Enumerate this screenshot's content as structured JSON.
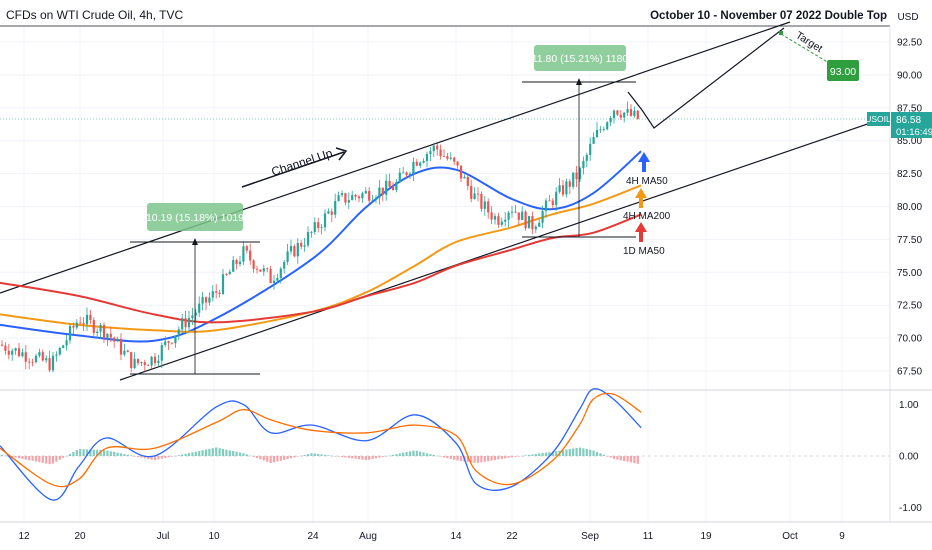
{
  "header": {
    "symbol_title": "CFDs on WTI Crude Oil, 4h, TVC",
    "idea_title": "October 10 - November 07 2022 Double Top",
    "currency": "USD"
  },
  "price_axis": {
    "ticks": [
      "92.50",
      "90.00",
      "87.50",
      "85.00",
      "82.50",
      "80.00",
      "77.50",
      "75.00",
      "72.50",
      "70.00",
      "67.50"
    ],
    "current_symbol": "USOIL",
    "current_price": "86.58",
    "countdown": "01:16:49"
  },
  "macd_axis": {
    "ticks": [
      "1.00",
      "0.00",
      "-1.00"
    ]
  },
  "time_axis": {
    "ticks": [
      "12",
      "20",
      "Jul",
      "10",
      "24",
      "Aug",
      "14",
      "22",
      "Sep",
      "11",
      "19",
      "Oct",
      "9"
    ]
  },
  "annotations": {
    "channel_label": "Channel Up",
    "measure_1": "10.19 (15.18%) 1019",
    "measure_2": "11.80 (15.21%) 1180",
    "target_label": "Target",
    "target_value": "93.00",
    "ma_4h50": "4H MA50",
    "ma_4h200": "4H MA200",
    "ma_1d50": "1D MA50"
  },
  "colors": {
    "up_candle": "#26a69a",
    "down_candle": "#ef5350",
    "ma50_4h": "#2962ff",
    "ma200_4h": "#f29a16",
    "ma50_1d": "#e53935",
    "macd": "#2962ff",
    "signal": "#ff6d00",
    "target_box": "#2e9e3e"
  },
  "chart_data": [
    {
      "type": "line",
      "title": "CFDs on WTI Crude Oil, 4h, TVC",
      "ylim": [
        66,
        93.5
      ],
      "x_ticks": [
        "12",
        "20",
        "Jul",
        "10",
        "24",
        "Aug",
        "14",
        "22",
        "Sep",
        "11",
        "19",
        "Oct",
        "9"
      ],
      "series": [
        {
          "name": "USOIL",
          "x": [
            "Jun 12",
            "Jun 16",
            "Jun 20",
            "Jun 24",
            "Jun 28",
            "Jul 1",
            "Jul 5",
            "Jul 10",
            "Jul 14",
            "Jul 18",
            "Jul 21",
            "Jul 24",
            "Jul 28",
            "Aug 1",
            "Aug 5",
            "Aug 8",
            "Aug 11",
            "Aug 14",
            "Aug 17",
            "Aug 20",
            "Aug 22",
            "Aug 25",
            "Aug 28",
            "Sep 1",
            "Sep 3",
            "Sep 6",
            "Sep 8",
            "Sep 10"
          ],
          "values": [
            69.5,
            68.0,
            71.5,
            70.5,
            68.0,
            68.5,
            71.0,
            73.5,
            76.5,
            74.5,
            76.5,
            78.0,
            80.5,
            81.0,
            81.5,
            83.5,
            84.5,
            83.0,
            80.5,
            79.0,
            80.0,
            78.5,
            80.5,
            82.5,
            85.0,
            87.5,
            87.0,
            86.58
          ]
        },
        {
          "name": "4H MA50",
          "x": [
            "Jun 12",
            "Jun 20",
            "Jul 1",
            "Jul 10",
            "Jul 24",
            "Aug 1",
            "Aug 8",
            "Aug 14",
            "Aug 22",
            "Aug 28",
            "Sep 3",
            "Sep 10"
          ],
          "values": [
            71.0,
            70.2,
            69.8,
            71.5,
            76.0,
            80.0,
            82.5,
            82.8,
            80.6,
            79.8,
            81.0,
            84.2
          ]
        },
        {
          "name": "4H MA200",
          "x": [
            "Jun 12",
            "Jun 20",
            "Jul 1",
            "Jul 10",
            "Jul 24",
            "Aug 1",
            "Aug 8",
            "Aug 14",
            "Aug 22",
            "Aug 28",
            "Sep 3",
            "Sep 10"
          ],
          "values": [
            71.8,
            71.0,
            70.6,
            70.6,
            72.0,
            73.5,
            75.5,
            77.3,
            78.4,
            79.4,
            80.2,
            81.6
          ]
        },
        {
          "name": "1D MA50",
          "x": [
            "Jun 12",
            "Jun 20",
            "Jul 1",
            "Jul 10",
            "Jul 24",
            "Aug 1",
            "Aug 8",
            "Aug 14",
            "Aug 22",
            "Aug 28",
            "Sep 3",
            "Sep 10"
          ],
          "values": [
            74.2,
            73.2,
            71.8,
            71.2,
            72.0,
            73.2,
            74.2,
            75.5,
            76.7,
            77.6,
            78.0,
            79.4
          ]
        }
      ],
      "annotations": [
        {
          "text": "10.19 (15.18%) 1019"
        },
        {
          "text": "11.80 (15.21%) 1180"
        },
        {
          "text": "Channel Up"
        },
        {
          "text": "Target"
        },
        {
          "text": "93.00"
        },
        {
          "text": "4H MA50"
        },
        {
          "text": "4H MA200"
        },
        {
          "text": "1D MA50"
        }
      ]
    },
    {
      "type": "line",
      "ylim": [
        -1.15,
        1.45
      ],
      "y_ticks": [
        "1.00",
        "0.00",
        "-1.00"
      ],
      "series": [
        {
          "name": "MACD",
          "x": [
            "Jun 12",
            "Jun 16",
            "Jun 20",
            "Jun 24",
            "Jul 1",
            "Jul 10",
            "Jul 14",
            "Jul 18",
            "Jul 24",
            "Aug 1",
            "Aug 8",
            "Aug 14",
            "Aug 17",
            "Aug 22",
            "Aug 28",
            "Sep 1",
            "Sep 3",
            "Sep 6",
            "Sep 10"
          ],
          "values": [
            0.2,
            -0.85,
            -0.2,
            0.35,
            0.0,
            0.95,
            1.0,
            0.45,
            0.6,
            0.3,
            0.8,
            0.25,
            -0.55,
            -0.6,
            0.05,
            0.9,
            1.3,
            1.1,
            0.55
          ]
        },
        {
          "name": "Signal",
          "x": [
            "Jun 12",
            "Jun 16",
            "Jun 20",
            "Jun 24",
            "Jul 1",
            "Jul 10",
            "Jul 14",
            "Jul 18",
            "Jul 24",
            "Aug 1",
            "Aug 8",
            "Aug 14",
            "Aug 17",
            "Aug 22",
            "Aug 28",
            "Sep 1",
            "Sep 3",
            "Sep 6",
            "Sep 10"
          ],
          "values": [
            0.15,
            -0.55,
            -0.45,
            0.15,
            0.15,
            0.65,
            0.9,
            0.7,
            0.5,
            0.45,
            0.6,
            0.4,
            -0.3,
            -0.55,
            -0.1,
            0.6,
            1.1,
            1.2,
            0.85
          ]
        }
      ]
    }
  ]
}
